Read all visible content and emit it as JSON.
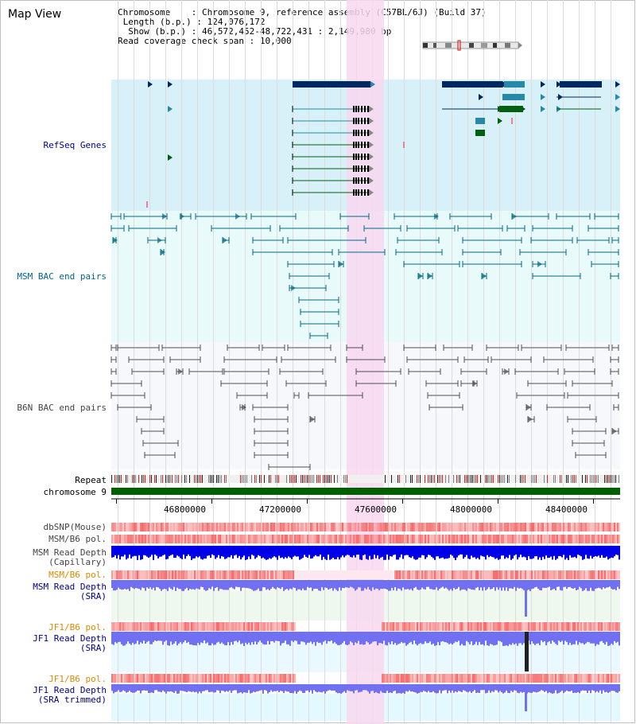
{
  "view": {
    "title": "Map View",
    "info": {
      "chromosome_label": "Chromosome",
      "chromosome_value": "Chromosome 9, reference assembly (C57BL/6J) (Build 37)",
      "length_label": "Length (b.p.)",
      "length_value": "124,076,172",
      "show_label": "Show (b.p.)",
      "show_value": "46,572,452-48,722,431 : 2,149,980 bp",
      "span_label": "Read coverage check span",
      "span_value": "10,000"
    }
  },
  "tracks": {
    "refseq": "RefSeq Genes",
    "msm_bac": "MSM BAC end pairs",
    "b6n_bac": "B6N BAC end pairs",
    "repeat": "Repeat",
    "chromosome": "chromosome 9",
    "dbsnp": "dbSNP(Mouse)",
    "msm_pol_1": "MSM/B6 pol.",
    "msm_depth_cap_1": "MSM Read Depth",
    "msm_depth_cap_2": "(Capillary)",
    "msm_pol_2": "MSM/B6 pol.",
    "msm_depth_sra_1": "MSM Read Depth",
    "msm_depth_sra_2": "(SRA)",
    "jf1_pol_1": "JF1/B6 pol.",
    "jf1_depth_1": "JF1 Read Depth",
    "jf1_depth_2": "(SRA)",
    "jf1_pol_2": "JF1/B6 pol.",
    "jf1_trim_1": "JF1 Read Depth",
    "jf1_trim_2": "(SRA trimmed)"
  },
  "axis": {
    "ticks": [
      "46800000",
      "47200000",
      "47600000",
      "48000000",
      "48400000"
    ]
  },
  "colors": {
    "refseq_bg": "#d8f0f8",
    "msm_bg": "#e8fafa",
    "b6n_bg": "#f6f8fc",
    "highlight": "#f8d8f0",
    "refseq_dark": "#002860",
    "refseq_green": "#006010",
    "msm_line": "#006888",
    "b6n_line": "#505050",
    "chromosome": "#006000",
    "depth_blue": "#0000e8",
    "depth_light": "#7070f0",
    "pol_red": "#f05050",
    "label_blue": "#000088",
    "label_teal": "#006688",
    "label_gray": "#444444",
    "label_orange": "#e08800"
  }
}
